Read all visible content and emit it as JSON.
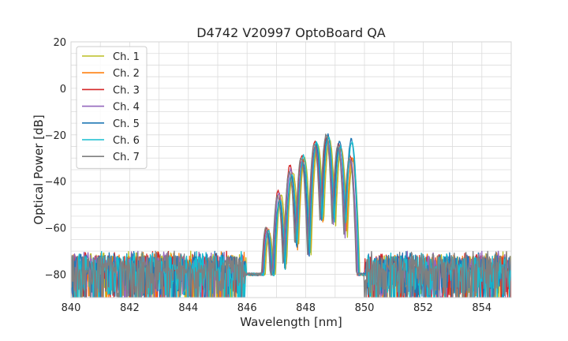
{
  "chart_data": {
    "type": "line",
    "title": "D4742 V20997 OptoBoard QA",
    "xlabel": "Wavelength [nm]",
    "ylabel": "Optical Power [dB]",
    "xlim": [
      840,
      855
    ],
    "ylim": [
      -90,
      20
    ],
    "xticks": [
      840,
      842,
      844,
      846,
      848,
      850,
      852,
      854
    ],
    "yticks": [
      20,
      0,
      -20,
      -40,
      -60,
      -80
    ],
    "xtick_labels": [
      "840",
      "842",
      "844",
      "846",
      "848",
      "850",
      "852",
      "854"
    ],
    "ytick_labels": [
      "20",
      "0",
      "−20",
      "−40",
      "−60",
      "−80"
    ],
    "grid": true,
    "legend_position": "top-left",
    "noise_floor_db": -76,
    "passband_nm": [
      846.0,
      850.0
    ],
    "peak_positions_nm": [
      846.7,
      847.1,
      847.5,
      847.9,
      848.35,
      848.75,
      849.15,
      849.55
    ],
    "series": [
      {
        "name": "Ch. 1",
        "color": "#bcbd22",
        "shift_nm": 0.06,
        "peaks_db": [
          -62,
          -46,
          -36,
          -30,
          -24,
          -22,
          -26,
          -31
        ]
      },
      {
        "name": "Ch. 2",
        "color": "#ff7f0e",
        "shift_nm": 0.03,
        "peaks_db": [
          -61,
          -47,
          -37,
          -31,
          -24,
          -21,
          -25,
          -30
        ]
      },
      {
        "name": "Ch. 3",
        "color": "#d62728",
        "shift_nm": -0.04,
        "peaks_db": [
          -60,
          -44,
          -33,
          -29,
          -23,
          -21,
          -24,
          -29
        ]
      },
      {
        "name": "Ch. 4",
        "color": "#9467bd",
        "shift_nm": -0.02,
        "peaks_db": [
          -61,
          -45,
          -35,
          -31,
          -24,
          -22,
          -26,
          -31
        ]
      },
      {
        "name": "Ch. 5",
        "color": "#1f77b4",
        "shift_nm": 0.0,
        "peaks_db": [
          -62,
          -48,
          -38,
          -32,
          -24,
          -20,
          -23,
          -22
        ]
      },
      {
        "name": "Ch. 6",
        "color": "#17becf",
        "shift_nm": 0.02,
        "peaks_db": [
          -61,
          -48,
          -37,
          -29,
          -23,
          -21,
          -25,
          -23
        ]
      },
      {
        "name": "Ch. 7",
        "color": "#7f7f7f",
        "shift_nm": -0.06,
        "peaks_db": [
          -60,
          -46,
          -36,
          -30,
          -24,
          -20,
          -25,
          -30
        ]
      }
    ]
  }
}
